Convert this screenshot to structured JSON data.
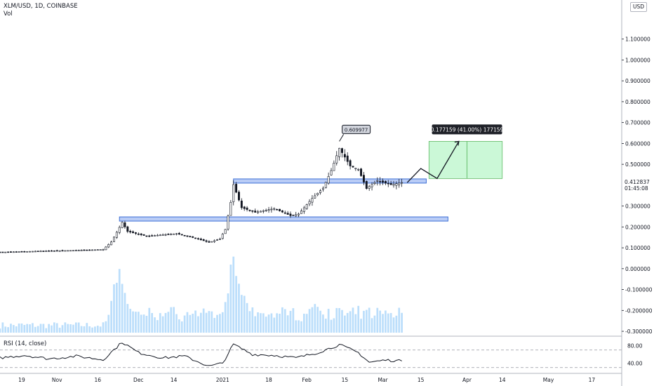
{
  "header": {
    "symbol_line": "XLM/USD, 1D, COINBASE",
    "vol_label": "Vol"
  },
  "currency_badge": "USD",
  "rsi_label": "RSI (14, close)",
  "price_tag": {
    "value": "0.412837",
    "countdown": "01:45:08"
  },
  "callout_label": "0.609977",
  "measure_label": "0.177159 (41.00%) 177159",
  "colors": {
    "up": "#ffffff",
    "down": "#131722",
    "wick": "#131722",
    "volume": "#bbdefb",
    "zone_fill": "#9bb7f2",
    "zone_stroke": "#3d6fd6",
    "target_fill": "#b9f6ca",
    "target_stroke": "#4caf50",
    "rsi_line": "#131722",
    "axis_text": "#131722",
    "grid_line": "#d1d4dc"
  },
  "chart_data": {
    "type": "candlestick",
    "title": "XLM/USD, 1D, COINBASE",
    "x_ticks": [
      {
        "label": "19",
        "date": "2020-10-19"
      },
      {
        "label": "Nov",
        "date": "2020-11-01"
      },
      {
        "label": "16",
        "date": "2020-11-16"
      },
      {
        "label": "Dec",
        "date": "2020-12-01"
      },
      {
        "label": "14",
        "date": "2020-12-14"
      },
      {
        "label": "2021",
        "date": "2021-01-01"
      },
      {
        "label": "18",
        "date": "2021-01-18"
      },
      {
        "label": "Feb",
        "date": "2021-02-01"
      },
      {
        "label": "15",
        "date": "2021-02-15"
      },
      {
        "label": "Mar",
        "date": "2021-03-01"
      },
      {
        "label": "15",
        "date": "2021-03-15"
      },
      {
        "label": "Apr",
        "date": "2021-04-01"
      },
      {
        "label": "14",
        "date": "2021-04-14"
      },
      {
        "label": "May",
        "date": "2021-05-01"
      },
      {
        "label": "17",
        "date": "2021-05-17"
      }
    ],
    "x_range": [
      "2020-10-11",
      "2021-05-28"
    ],
    "y_ticks": [
      "1.100000",
      "1.000000",
      "0.900000",
      "0.800000",
      "0.700000",
      "0.600000",
      "0.500000",
      "0.300000",
      "0.200000",
      "0.100000",
      "0.000000",
      "-0.100000",
      "-0.200000",
      "-0.300000"
    ],
    "ylim": [
      -0.32,
      1.22
    ],
    "last_price": 0.412837,
    "ohlc_close_path": [
      {
        "date": "2020-10-11",
        "close": 0.079
      },
      {
        "date": "2020-10-25",
        "close": 0.084
      },
      {
        "date": "2020-11-08",
        "close": 0.088
      },
      {
        "date": "2020-11-18",
        "close": 0.092
      },
      {
        "date": "2020-11-21",
        "close": 0.128
      },
      {
        "date": "2020-11-24",
        "close": 0.198
      },
      {
        "date": "2020-11-25",
        "close": 0.222
      },
      {
        "date": "2020-11-27",
        "close": 0.178
      },
      {
        "date": "2020-12-04",
        "close": 0.156
      },
      {
        "date": "2020-12-15",
        "close": 0.168
      },
      {
        "date": "2020-12-22",
        "close": 0.146
      },
      {
        "date": "2020-12-27",
        "close": 0.126
      },
      {
        "date": "2020-12-31",
        "close": 0.143
      },
      {
        "date": "2021-01-02",
        "close": 0.188
      },
      {
        "date": "2021-01-04",
        "close": 0.318
      },
      {
        "date": "2021-01-05",
        "close": 0.403
      },
      {
        "date": "2021-01-08",
        "close": 0.292
      },
      {
        "date": "2021-01-13",
        "close": 0.27
      },
      {
        "date": "2021-01-20",
        "close": 0.288
      },
      {
        "date": "2021-01-26",
        "close": 0.254
      },
      {
        "date": "2021-01-29",
        "close": 0.262
      },
      {
        "date": "2021-02-03",
        "close": 0.337
      },
      {
        "date": "2021-02-07",
        "close": 0.386
      },
      {
        "date": "2021-02-10",
        "close": 0.47
      },
      {
        "date": "2021-02-13",
        "close": 0.577
      },
      {
        "date": "2021-02-17",
        "close": 0.492
      },
      {
        "date": "2021-02-20",
        "close": 0.476
      },
      {
        "date": "2021-02-23",
        "close": 0.384
      },
      {
        "date": "2021-02-27",
        "close": 0.422
      },
      {
        "date": "2021-03-04",
        "close": 0.402
      },
      {
        "date": "2021-03-08",
        "close": 0.412837
      }
    ],
    "volume_peaks": [
      {
        "date": "2020-11-24",
        "value": 0.9
      },
      {
        "date": "2021-01-05",
        "value": 1.0
      },
      {
        "date": "2021-01-08",
        "value": 0.6
      },
      {
        "date": "2021-02-04",
        "value": 0.45
      },
      {
        "date": "2021-02-13",
        "value": 0.3
      }
    ],
    "support_zones": [
      {
        "from": "2021-01-05",
        "to": "2021-03-17",
        "low": 0.41,
        "high": 0.43
      },
      {
        "from": "2020-11-24",
        "to": "2021-03-25",
        "low": 0.228,
        "high": 0.248
      }
    ],
    "high_callout": {
      "date": "2021-02-13",
      "price": 0.609977
    },
    "target_box": {
      "from": "2021-03-18",
      "to": "2021-04-14",
      "low": 0.432,
      "high": 0.609977
    },
    "projection_path": [
      {
        "date": "2021-03-10",
        "price": 0.412837
      },
      {
        "date": "2021-03-15",
        "price": 0.48
      },
      {
        "date": "2021-03-21",
        "price": 0.432
      },
      {
        "date": "2021-03-29",
        "price": 0.609977
      }
    ],
    "rsi": {
      "ticks": [
        "80.00",
        "40.00"
      ],
      "ylim": [
        20,
        100
      ],
      "levels": [
        70,
        30
      ],
      "values": [
        {
          "date": "2020-10-11",
          "value": 52
        },
        {
          "date": "2020-10-20",
          "value": 58
        },
        {
          "date": "2020-10-29",
          "value": 50
        },
        {
          "date": "2020-11-08",
          "value": 56
        },
        {
          "date": "2020-11-18",
          "value": 48
        },
        {
          "date": "2020-11-25",
          "value": 88
        },
        {
          "date": "2020-12-01",
          "value": 64
        },
        {
          "date": "2020-12-10",
          "value": 52
        },
        {
          "date": "2020-12-18",
          "value": 56
        },
        {
          "date": "2020-12-27",
          "value": 33
        },
        {
          "date": "2021-01-01",
          "value": 40
        },
        {
          "date": "2021-01-05",
          "value": 83
        },
        {
          "date": "2021-01-12",
          "value": 60
        },
        {
          "date": "2021-01-20",
          "value": 58
        },
        {
          "date": "2021-01-28",
          "value": 52
        },
        {
          "date": "2021-02-05",
          "value": 64
        },
        {
          "date": "2021-02-13",
          "value": 82
        },
        {
          "date": "2021-02-20",
          "value": 64
        },
        {
          "date": "2021-02-24",
          "value": 42
        },
        {
          "date": "2021-03-02",
          "value": 47
        },
        {
          "date": "2021-03-08",
          "value": 45
        }
      ]
    }
  }
}
